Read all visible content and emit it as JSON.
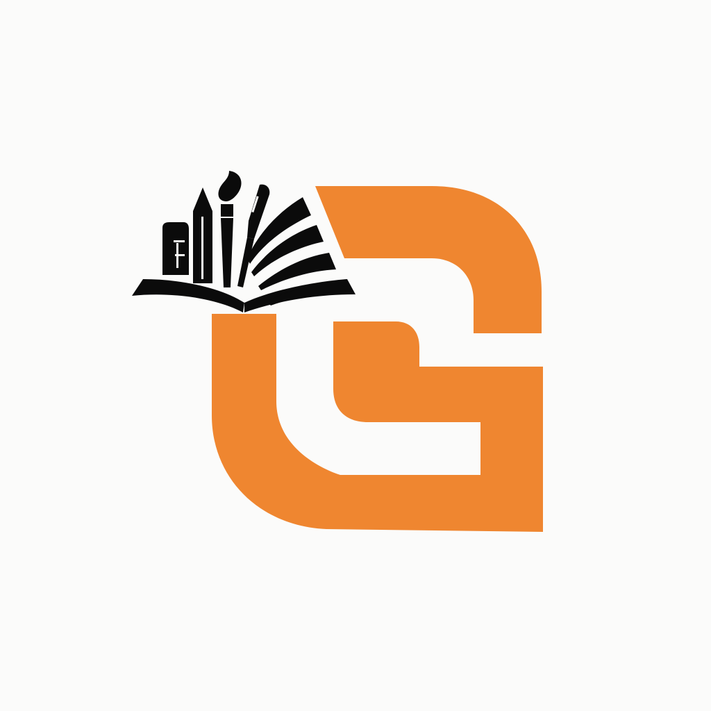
{
  "logo": {
    "mark": "G",
    "icon": "book-with-stationery-icon",
    "colors": {
      "background": "#fbfbfa",
      "accent": "#ef8630",
      "ink": "#0b0b0b"
    }
  }
}
